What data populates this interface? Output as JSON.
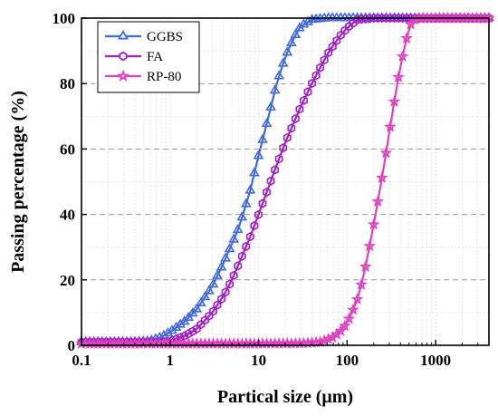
{
  "chart_data": {
    "type": "line",
    "xlabel": "Partical size (μm)",
    "ylabel": "Passing percentage (%)",
    "x_scale": "log",
    "xlim": [
      0.1,
      4000
    ],
    "ylim": [
      0,
      100
    ],
    "x_ticks": [
      0.1,
      1,
      10,
      100,
      1000
    ],
    "x_tick_labels": [
      "0.1",
      "1",
      "10",
      "100",
      "1000"
    ],
    "y_ticks": [
      0,
      20,
      40,
      60,
      80,
      100
    ],
    "y_tick_labels": [
      "0",
      "20",
      "40",
      "60",
      "80",
      "100"
    ],
    "grid": "horizontal dashed at major y ticks, dotted at minor ticks",
    "legend_position": "top-left",
    "series": [
      {
        "name": "GGBS",
        "color": "#4169e1",
        "marker": "triangle",
        "points": [
          [
            0.1,
            1
          ],
          [
            0.2,
            1
          ],
          [
            0.4,
            1
          ],
          [
            0.6,
            1.3
          ],
          [
            0.8,
            2.5
          ],
          [
            1,
            4
          ],
          [
            1.5,
            7.5
          ],
          [
            2,
            11
          ],
          [
            3,
            18
          ],
          [
            4,
            25
          ],
          [
            5,
            31
          ],
          [
            6,
            36
          ],
          [
            8,
            47
          ],
          [
            10,
            58
          ],
          [
            13,
            70
          ],
          [
            16,
            80
          ],
          [
            20,
            88
          ],
          [
            25,
            94
          ],
          [
            30,
            97.5
          ],
          [
            40,
            99.5
          ],
          [
            60,
            100
          ],
          [
            100,
            100
          ],
          [
            300,
            100
          ],
          [
            1000,
            100
          ],
          [
            4000,
            100
          ]
        ]
      },
      {
        "name": "FA",
        "color": "#a020c8",
        "marker": "hexagon",
        "points": [
          [
            0.1,
            1
          ],
          [
            0.5,
            1
          ],
          [
            0.8,
            1
          ],
          [
            1,
            1.2
          ],
          [
            1.5,
            3
          ],
          [
            2,
            5
          ],
          [
            3,
            10
          ],
          [
            4,
            15
          ],
          [
            5,
            20
          ],
          [
            6,
            25
          ],
          [
            8,
            33
          ],
          [
            10,
            40
          ],
          [
            15,
            53
          ],
          [
            20,
            62
          ],
          [
            30,
            73
          ],
          [
            40,
            80
          ],
          [
            50,
            85
          ],
          [
            60,
            89
          ],
          [
            80,
            94
          ],
          [
            100,
            97
          ],
          [
            130,
            99.5
          ],
          [
            200,
            100
          ],
          [
            1000,
            100
          ],
          [
            4000,
            100
          ]
        ]
      },
      {
        "name": "RP-80",
        "color": "#e040c0",
        "marker": "star",
        "points": [
          [
            0.1,
            0.5
          ],
          [
            1,
            0.5
          ],
          [
            10,
            0.5
          ],
          [
            30,
            0.6
          ],
          [
            50,
            1
          ],
          [
            70,
            2.5
          ],
          [
            90,
            5
          ],
          [
            110,
            9
          ],
          [
            130,
            14
          ],
          [
            150,
            20
          ],
          [
            170,
            27
          ],
          [
            200,
            37
          ],
          [
            240,
            49
          ],
          [
            280,
            60
          ],
          [
            320,
            70
          ],
          [
            380,
            82
          ],
          [
            450,
            92
          ],
          [
            520,
            98
          ],
          [
            600,
            100
          ],
          [
            1000,
            100
          ],
          [
            4000,
            100
          ]
        ]
      }
    ]
  }
}
